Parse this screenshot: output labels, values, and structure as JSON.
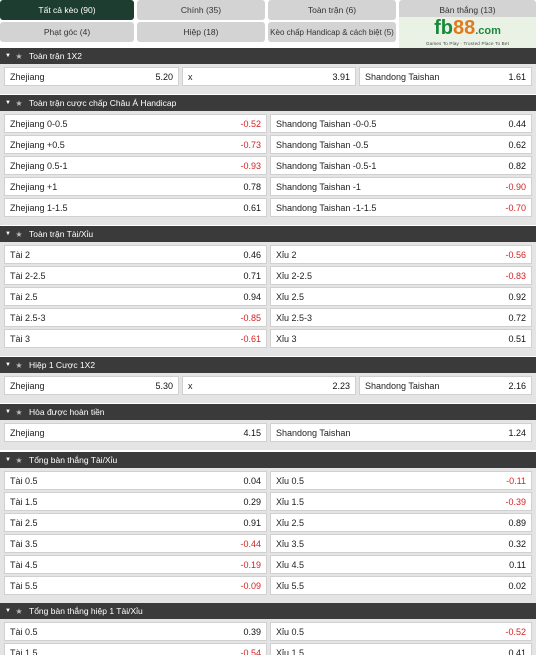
{
  "tabs": [
    {
      "label": "Tất cả kèo (90)",
      "active": true
    },
    {
      "label": "Chính (35)",
      "active": false
    },
    {
      "label": "Toàn trận (6)",
      "active": false
    },
    {
      "label": "Bàn thắng (13)",
      "active": false
    },
    {
      "label": "Phạt góc (4)",
      "active": false
    },
    {
      "label": "Hiệp (18)",
      "active": false
    },
    {
      "label": "Kèo chấp Handicap & cách biệt (5)",
      "active": false
    }
  ],
  "logo": {
    "fb": "fb",
    "n88": "88",
    "dom": ".com",
    "tagline": "Games To Play · Trusted Place To Bet"
  },
  "colors": {
    "header": "#3a3a3a",
    "active_tab": "#1c3d30",
    "negative": "#d32222",
    "logo_green": "#1a8a3a",
    "logo_orange": "#e07a1a"
  },
  "sections": [
    {
      "title": "Toàn trận 1X2",
      "cols": 3,
      "rows": [
        [
          {
            "team": "Zhejiang",
            "h": "",
            "v": "5.20"
          },
          {
            "team": "x",
            "h": "",
            "v": "3.91"
          },
          {
            "team": "Shandong Taishan",
            "h": "",
            "v": "1.61"
          }
        ]
      ]
    },
    {
      "title": "Toàn trận cược chấp Châu Á Handicap",
      "cols": 2,
      "rows": [
        [
          {
            "team": "Zhejiang",
            "h": "0-0.5",
            "v": "-0.52"
          },
          {
            "team": "Shandong Taishan",
            "h": "-0-0.5",
            "v": "0.44"
          }
        ],
        [
          {
            "team": "Zhejiang",
            "h": "+0.5",
            "v": "-0.73"
          },
          {
            "team": "Shandong Taishan",
            "h": "-0.5",
            "v": "0.62"
          }
        ],
        [
          {
            "team": "Zhejiang",
            "h": "0.5-1",
            "v": "-0.93"
          },
          {
            "team": "Shandong Taishan",
            "h": "-0.5-1",
            "v": "0.82"
          }
        ],
        [
          {
            "team": "Zhejiang",
            "h": "+1",
            "v": "0.78"
          },
          {
            "team": "Shandong Taishan",
            "h": "-1",
            "v": "-0.90"
          }
        ],
        [
          {
            "team": "Zhejiang",
            "h": "1-1.5",
            "v": "0.61"
          },
          {
            "team": "Shandong Taishan",
            "h": "-1-1.5",
            "v": "-0.70"
          }
        ]
      ]
    },
    {
      "title": "Toàn trận Tài/Xỉu",
      "cols": 2,
      "rows": [
        [
          {
            "team": "Tài",
            "h": "2",
            "v": "0.46"
          },
          {
            "team": "Xỉu",
            "h": "2",
            "v": "-0.56"
          }
        ],
        [
          {
            "team": "Tài",
            "h": "2-2.5",
            "v": "0.71"
          },
          {
            "team": "Xỉu",
            "h": "2-2.5",
            "v": "-0.83"
          }
        ],
        [
          {
            "team": "Tài",
            "h": "2.5",
            "v": "0.94"
          },
          {
            "team": "Xỉu",
            "h": "2.5",
            "v": "0.92"
          }
        ],
        [
          {
            "team": "Tài",
            "h": "2.5-3",
            "v": "-0.85"
          },
          {
            "team": "Xỉu",
            "h": "2.5-3",
            "v": "0.72"
          }
        ],
        [
          {
            "team": "Tài",
            "h": "3",
            "v": "-0.61"
          },
          {
            "team": "Xỉu",
            "h": "3",
            "v": "0.51"
          }
        ]
      ]
    },
    {
      "title": "Hiệp 1 Cược 1X2",
      "cols": 3,
      "rows": [
        [
          {
            "team": "Zhejiang",
            "h": "",
            "v": "5.30"
          },
          {
            "team": "x",
            "h": "",
            "v": "2.23"
          },
          {
            "team": "Shandong Taishan",
            "h": "",
            "v": "2.16"
          }
        ]
      ]
    },
    {
      "title": "Hòa được hoàn tiền",
      "cols": 2,
      "rows": [
        [
          {
            "team": "Zhejiang",
            "h": "",
            "v": "4.15"
          },
          {
            "team": "Shandong Taishan",
            "h": "",
            "v": "1.24"
          }
        ]
      ]
    },
    {
      "title": "Tổng bàn thắng Tài/Xỉu",
      "cols": 2,
      "rows": [
        [
          {
            "team": "Tài",
            "h": "0.5",
            "v": "0.04"
          },
          {
            "team": "Xỉu",
            "h": "0.5",
            "v": "-0.11"
          }
        ],
        [
          {
            "team": "Tài",
            "h": "1.5",
            "v": "0.29"
          },
          {
            "team": "Xỉu",
            "h": "1.5",
            "v": "-0.39"
          }
        ],
        [
          {
            "team": "Tài",
            "h": "2.5",
            "v": "0.91"
          },
          {
            "team": "Xỉu",
            "h": "2.5",
            "v": "0.89"
          }
        ],
        [
          {
            "team": "Tài",
            "h": "3.5",
            "v": "-0.44"
          },
          {
            "team": "Xỉu",
            "h": "3.5",
            "v": "0.32"
          }
        ],
        [
          {
            "team": "Tài",
            "h": "4.5",
            "v": "-0.19"
          },
          {
            "team": "Xỉu",
            "h": "4.5",
            "v": "0.11"
          }
        ],
        [
          {
            "team": "Tài",
            "h": "5.5",
            "v": "-0.09"
          },
          {
            "team": "Xỉu",
            "h": "5.5",
            "v": "0.02"
          }
        ]
      ]
    },
    {
      "title": "Tổng bàn thắng hiệp 1 Tài/Xỉu",
      "cols": 2,
      "rows": [
        [
          {
            "team": "Tài",
            "h": "0.5",
            "v": "0.39"
          },
          {
            "team": "Xỉu",
            "h": "0.5",
            "v": "-0.52"
          }
        ],
        [
          {
            "team": "Tài",
            "h": "1.5",
            "v": "-0.54"
          },
          {
            "team": "Xỉu",
            "h": "1.5",
            "v": "0.41"
          }
        ]
      ]
    }
  ]
}
